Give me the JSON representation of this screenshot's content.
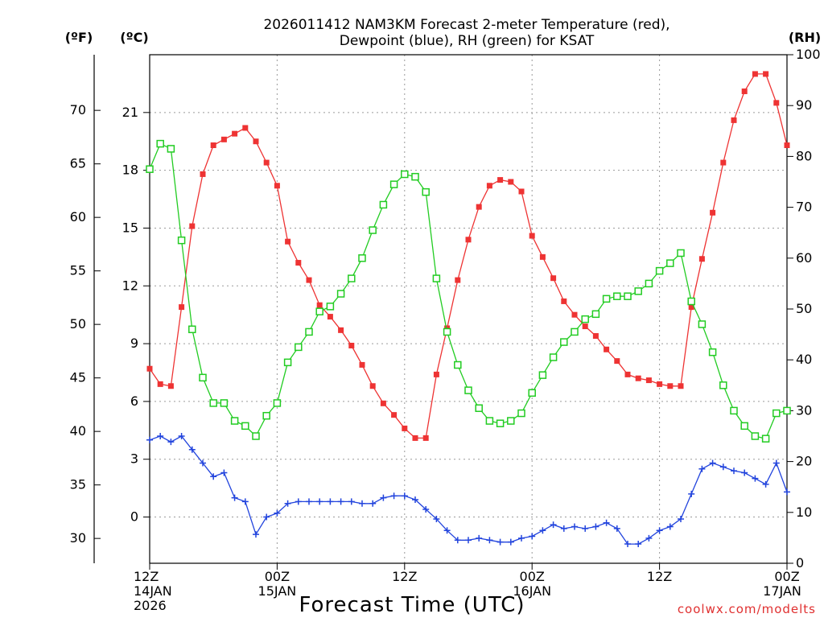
{
  "chart_data": {
    "type": "line",
    "title": [
      "2026011412 NAM3KM Forecast 2-meter Temperature (red),",
      "Dewpoint (blue), RH (green) for KSAT"
    ],
    "xlabel": "Forecast Time (UTC)",
    "credit": "coolwx.com/modelts",
    "unit_labels": {
      "fahrenheit": "(ºF)",
      "celsius": "(ºC)",
      "rh": "(RH)"
    },
    "x_hours_range": [
      0,
      60
    ],
    "celsius_range": [
      -2.4,
      24
    ],
    "rh_range": [
      0,
      100
    ],
    "x_ticks": [
      {
        "hour": 0,
        "lines": [
          "12Z",
          "14JAN",
          "2026"
        ]
      },
      {
        "hour": 12,
        "lines": [
          "00Z",
          "15JAN"
        ]
      },
      {
        "hour": 24,
        "lines": [
          "12Z"
        ]
      },
      {
        "hour": 36,
        "lines": [
          "00Z",
          "16JAN"
        ]
      },
      {
        "hour": 48,
        "lines": [
          "12Z"
        ]
      },
      {
        "hour": 60,
        "lines": [
          "00Z",
          "17JAN"
        ]
      }
    ],
    "celsius_ticks": [
      0,
      3,
      6,
      9,
      12,
      15,
      18,
      21
    ],
    "fahrenheit_ticks": [
      30,
      35,
      40,
      45,
      50,
      55,
      60,
      65,
      70
    ],
    "rh_ticks": [
      0,
      10,
      20,
      30,
      40,
      50,
      60,
      70,
      80,
      90,
      100
    ],
    "series": [
      {
        "name": "2-meter Temperature",
        "color": "#ee3333",
        "units": "C",
        "marker": "filled-square",
        "x": [
          0,
          1,
          2,
          3,
          4,
          5,
          6,
          7,
          8,
          9,
          10,
          11,
          12,
          13,
          14,
          15,
          16,
          17,
          18,
          19,
          20,
          21,
          22,
          23,
          24,
          25,
          26,
          27,
          28,
          29,
          30,
          31,
          32,
          33,
          34,
          35,
          36,
          37,
          38,
          39,
          40,
          41,
          42,
          43,
          44,
          45,
          46,
          47,
          48,
          49,
          50,
          51,
          52,
          53,
          54,
          55,
          56,
          57,
          58,
          59,
          60
        ],
        "values": [
          7.7,
          6.9,
          6.8,
          10.9,
          15.1,
          17.8,
          19.3,
          19.6,
          19.9,
          20.2,
          19.5,
          18.4,
          17.2,
          14.3,
          13.2,
          12.3,
          11.0,
          10.4,
          9.7,
          8.9,
          7.9,
          6.8,
          5.9,
          5.3,
          4.6,
          4.1,
          4.1,
          7.4,
          9.8,
          12.3,
          14.4,
          16.1,
          17.2,
          17.5,
          17.4,
          16.9,
          14.6,
          13.5,
          12.4,
          11.2,
          10.5,
          9.9,
          9.4,
          8.7,
          8.1,
          7.4,
          7.2,
          7.1,
          6.9,
          6.8,
          6.8,
          10.9,
          13.4,
          15.8,
          18.4,
          20.6,
          22.1,
          23.0,
          23.0,
          21.5,
          19.3
        ]
      },
      {
        "name": "Dewpoint",
        "color": "#2244dd",
        "units": "C",
        "marker": "plus",
        "x": [
          0,
          1,
          2,
          3,
          4,
          5,
          6,
          7,
          8,
          9,
          10,
          11,
          12,
          13,
          14,
          15,
          16,
          17,
          18,
          19,
          20,
          21,
          22,
          23,
          24,
          25,
          26,
          27,
          28,
          29,
          30,
          31,
          32,
          33,
          34,
          35,
          36,
          37,
          38,
          39,
          40,
          41,
          42,
          43,
          44,
          45,
          46,
          47,
          48,
          49,
          50,
          51,
          52,
          53,
          54,
          55,
          56,
          57,
          58,
          59,
          60
        ],
        "values": [
          4.0,
          4.2,
          3.9,
          4.2,
          3.5,
          2.8,
          2.1,
          2.3,
          1.0,
          0.8,
          -0.9,
          0.0,
          0.2,
          0.7,
          0.8,
          0.8,
          0.8,
          0.8,
          0.8,
          0.8,
          0.7,
          0.7,
          1.0,
          1.1,
          1.1,
          0.9,
          0.4,
          -0.1,
          -0.7,
          -1.2,
          -1.2,
          -1.1,
          -1.2,
          -1.3,
          -1.3,
          -1.1,
          -1.0,
          -0.7,
          -0.4,
          -0.6,
          -0.5,
          -0.6,
          -0.5,
          -0.3,
          -0.6,
          -1.4,
          -1.4,
          -1.1,
          -0.7,
          -0.5,
          -0.1,
          1.2,
          2.5,
          2.8,
          2.6,
          2.4,
          2.3,
          2.0,
          1.7,
          2.8,
          1.3
        ]
      },
      {
        "name": "RH",
        "color": "#22cc22",
        "units": "%",
        "marker": "open-square",
        "x": [
          0,
          1,
          2,
          3,
          4,
          5,
          6,
          7,
          8,
          9,
          10,
          11,
          12,
          13,
          14,
          15,
          16,
          17,
          18,
          19,
          20,
          21,
          22,
          23,
          24,
          25,
          26,
          27,
          28,
          29,
          30,
          31,
          32,
          33,
          34,
          35,
          36,
          37,
          38,
          39,
          40,
          41,
          42,
          43,
          44,
          45,
          46,
          47,
          48,
          49,
          50,
          51,
          52,
          53,
          54,
          55,
          56,
          57,
          58,
          59,
          60
        ],
        "values": [
          77.5,
          82.5,
          81.5,
          63.5,
          46.0,
          36.5,
          31.5,
          31.5,
          28.0,
          27.0,
          25.0,
          29.0,
          31.5,
          39.5,
          42.5,
          45.5,
          49.5,
          50.5,
          53.0,
          56.0,
          60.0,
          65.5,
          70.5,
          74.5,
          76.5,
          76.0,
          73.0,
          56.0,
          45.5,
          39.0,
          34.0,
          30.5,
          28.0,
          27.5,
          28.0,
          29.5,
          33.5,
          37.0,
          40.5,
          43.5,
          45.5,
          48.0,
          49.0,
          52.0,
          52.5,
          52.5,
          53.5,
          55.0,
          57.5,
          59.0,
          61.0,
          51.5,
          47.0,
          41.5,
          35.0,
          30.0,
          27.0,
          25.0,
          24.5,
          29.5,
          30.0
        ]
      }
    ]
  }
}
